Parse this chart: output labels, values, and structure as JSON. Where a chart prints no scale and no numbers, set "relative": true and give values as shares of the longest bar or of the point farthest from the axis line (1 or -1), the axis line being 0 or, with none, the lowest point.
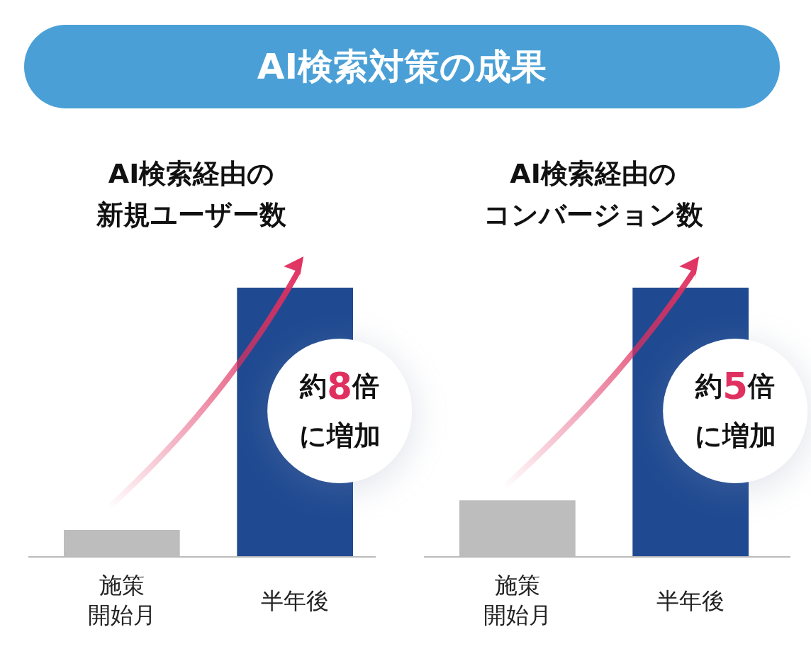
{
  "chart_data": [
    {
      "type": "other",
      "title": "AI検索対策の成果"
    },
    {
      "type": "bar",
      "title": "AI検索経由の新規ユーザー数",
      "categories": [
        "施策開始月",
        "半年後"
      ],
      "values": [
        0.1,
        1
      ],
      "colors": [
        "#bdbdbd",
        "#1f4a91"
      ],
      "relative": true,
      "annotations": [
        "約8倍",
        "に増加"
      ]
    },
    {
      "type": "bar",
      "title": "AI検索経由のコンバージョン数",
      "categories": [
        "施策開始月",
        "半年後"
      ],
      "values": [
        0.21,
        1
      ],
      "colors": [
        "#bdbdbd",
        "#1f4a91"
      ],
      "relative": true,
      "annotations": [
        "約5倍",
        "に増加"
      ]
    }
  ]
}
